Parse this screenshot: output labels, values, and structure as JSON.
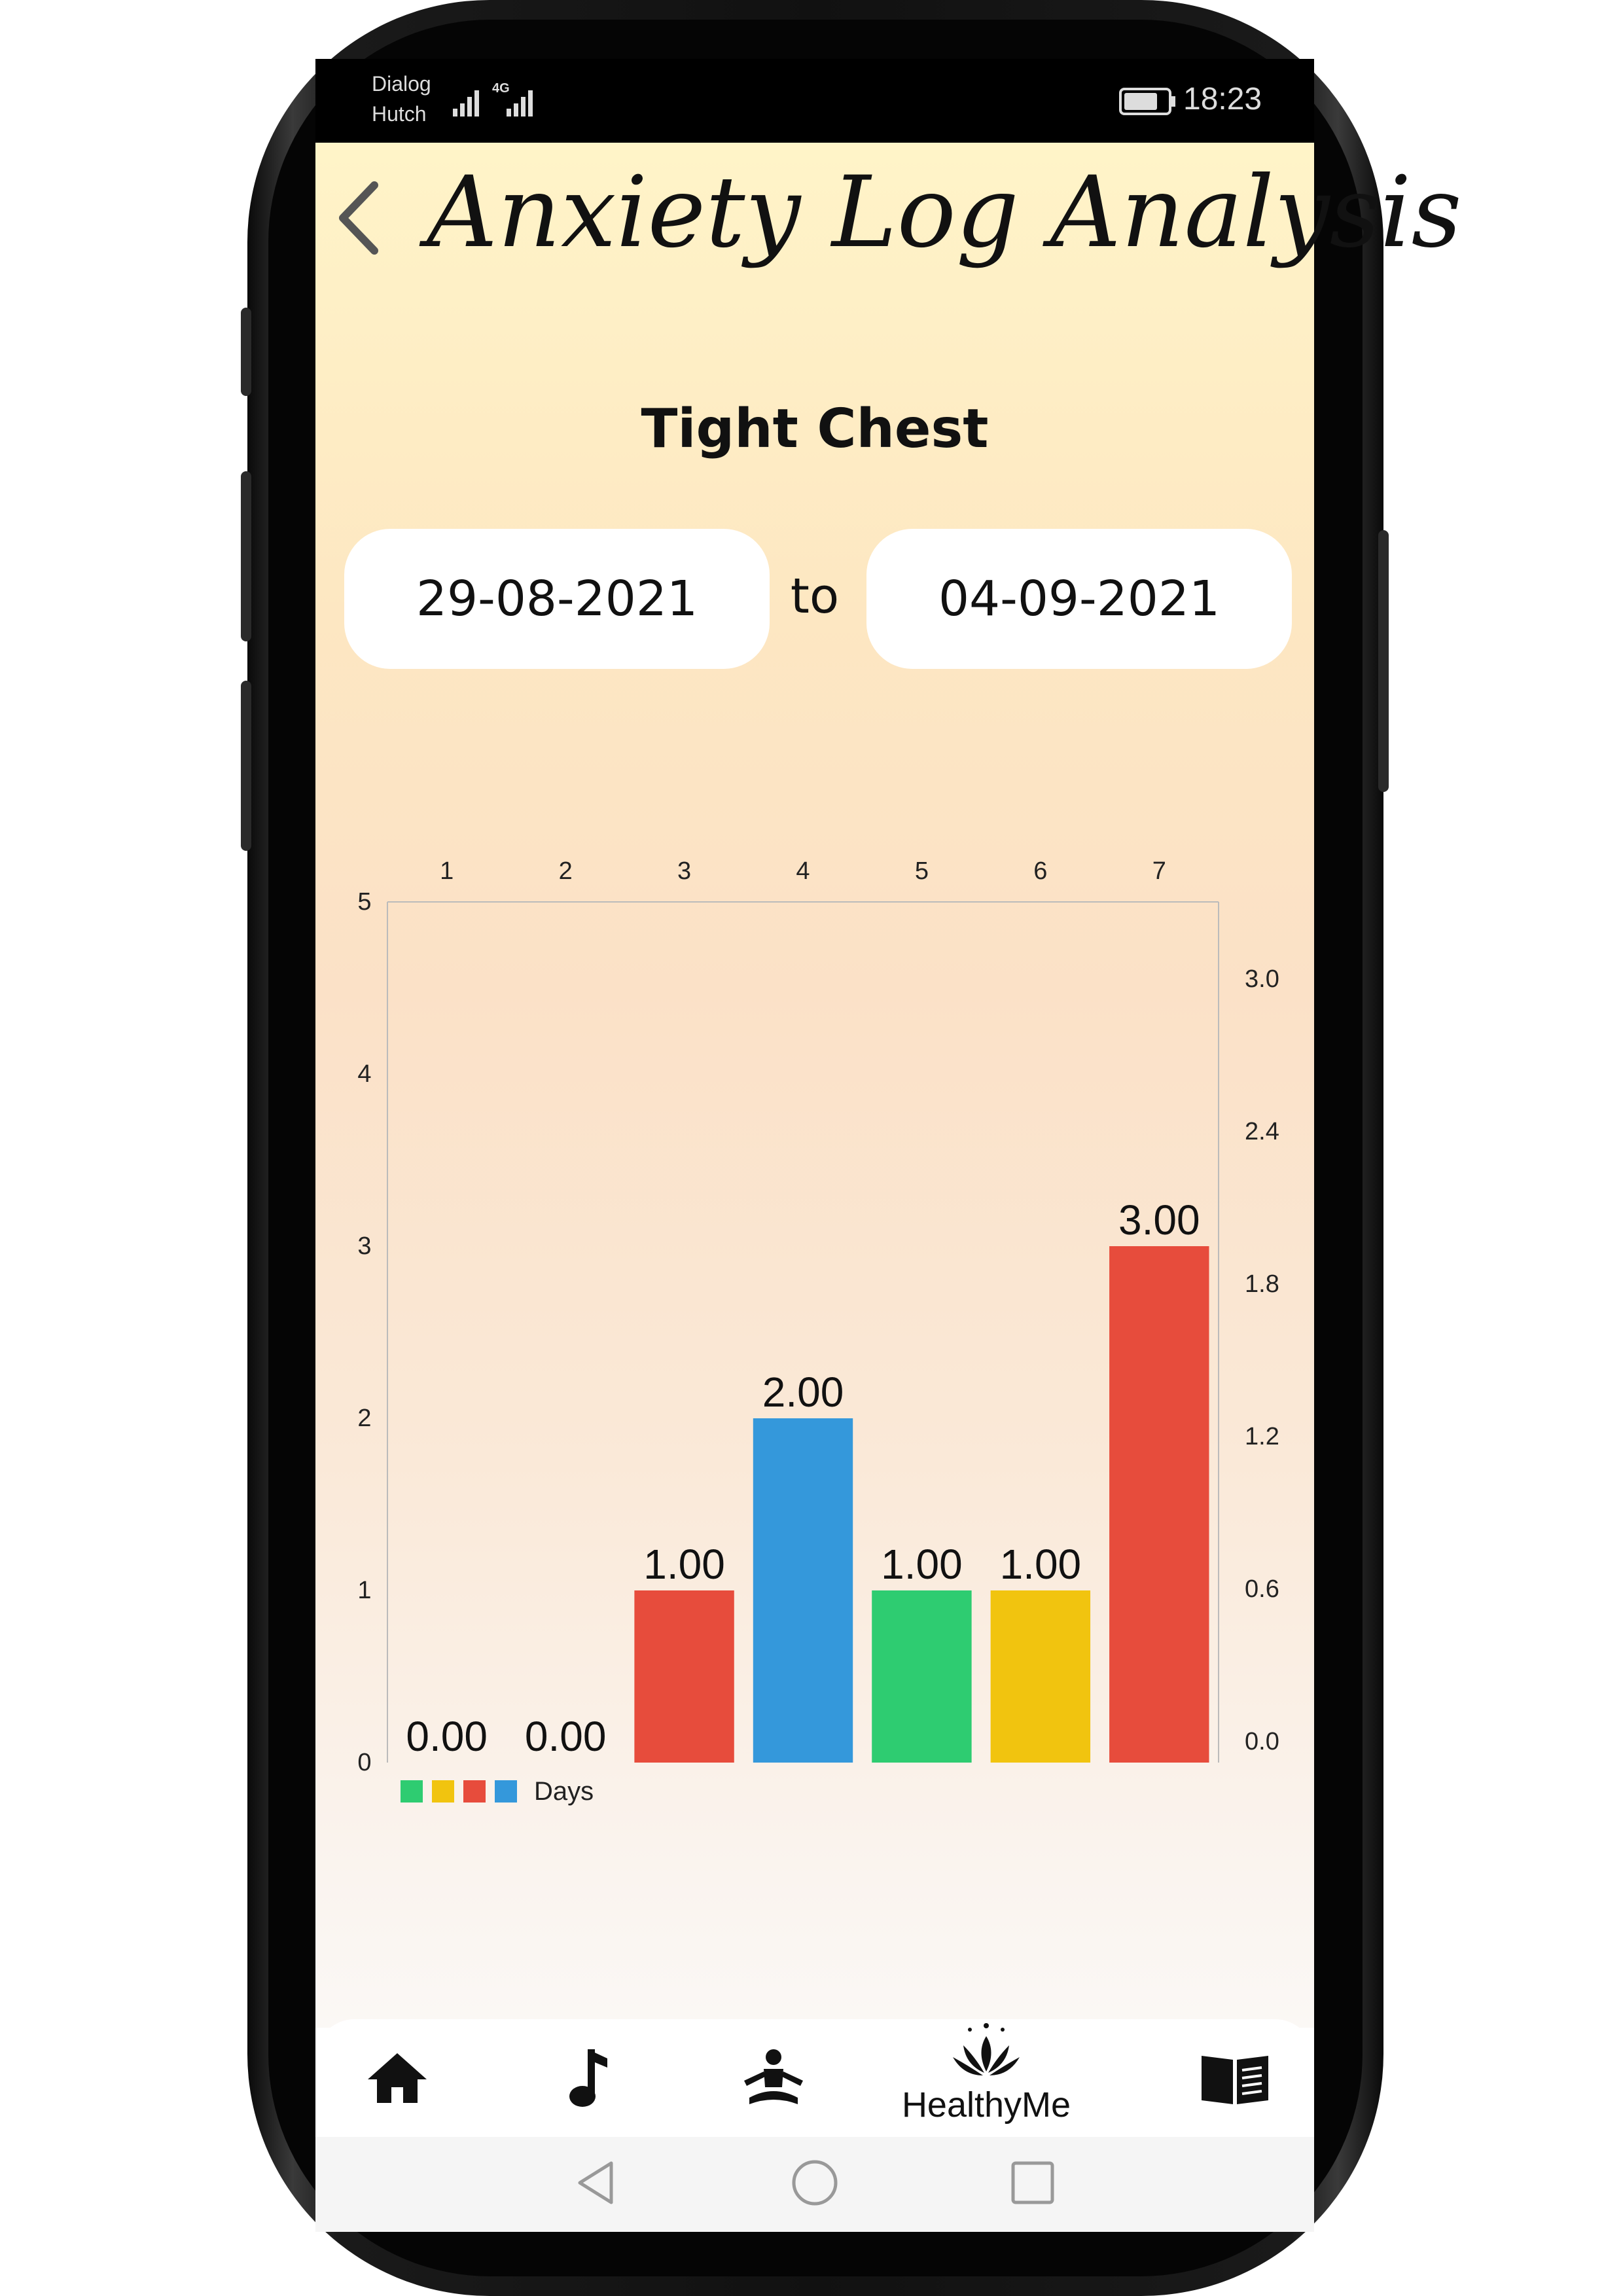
{
  "status_bar": {
    "carrier_line1": "Dialog",
    "carrier_line2": "Hutch",
    "network": "4G",
    "time": "18:23"
  },
  "header": {
    "title": "Anxiety Log Analysis"
  },
  "symptom": "Tight Chest",
  "date_range": {
    "from": "29-08-2021",
    "separator": "to",
    "to": "04-09-2021"
  },
  "chart_data": {
    "type": "bar",
    "categories": [
      "1",
      "2",
      "3",
      "4",
      "5",
      "6",
      "7"
    ],
    "values": [
      0,
      0,
      1,
      2,
      1,
      1,
      3
    ],
    "value_labels": [
      "0.00",
      "0.00",
      "1.00",
      "2.00",
      "1.00",
      "1.00",
      "3.00"
    ],
    "bar_colors": [
      "#e74c3c",
      "#e74c3c",
      "#e74c3c",
      "#3498db",
      "#2ecc71",
      "#f1c40f",
      "#e74c3c"
    ],
    "left_axis_ticks": [
      "0",
      "1",
      "2",
      "3",
      "4",
      "5"
    ],
    "left_ylim": [
      0,
      5
    ],
    "right_axis_ticks": [
      "0.0",
      "0.6",
      "1.2",
      "1.8",
      "2.4",
      "3.0"
    ],
    "legend": {
      "colors": [
        "#2ecc71",
        "#f1c40f",
        "#e74c3c",
        "#3498db"
      ],
      "label": "Days",
      "position": "bottom-left"
    }
  },
  "bottom_nav": {
    "items": [
      {
        "icon": "home-icon"
      },
      {
        "icon": "music-note-icon"
      },
      {
        "icon": "meditation-icon"
      },
      {
        "icon": "lotus-icon",
        "label": "HealthyMe"
      },
      {
        "icon": "book-icon"
      }
    ]
  }
}
